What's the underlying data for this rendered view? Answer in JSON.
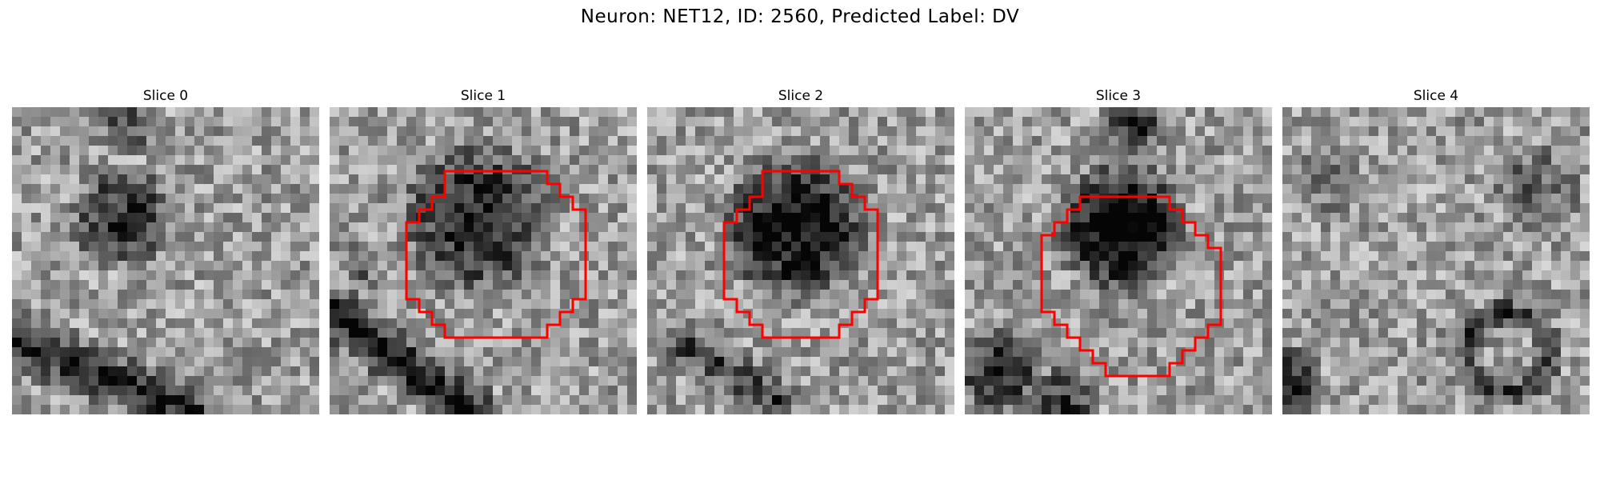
{
  "figure": {
    "title": "Neuron: NET12, ID: 2560, Predicted Label: DV"
  },
  "panels": [
    {
      "title": "Slice 0"
    },
    {
      "title": "Slice 1"
    },
    {
      "title": "Slice 2"
    },
    {
      "title": "Slice 3"
    },
    {
      "title": "Slice 4"
    }
  ],
  "colors": {
    "contour": "#ff0000"
  }
}
